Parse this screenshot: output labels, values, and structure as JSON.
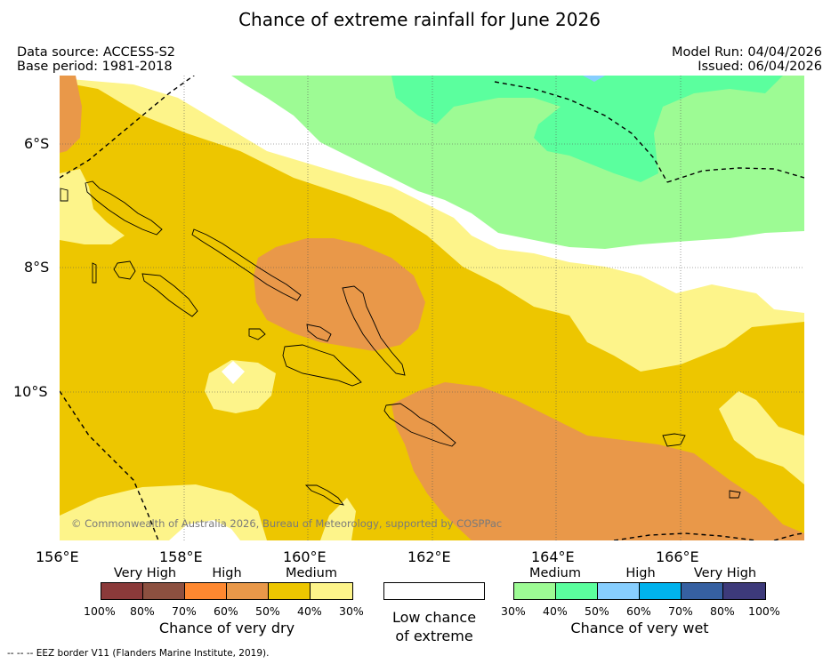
{
  "title": "Chance of extreme rainfall for June 2026",
  "meta": {
    "data_source": "Data source: ACCESS-S2",
    "base_period": "Base period: 1981-2018",
    "model_run": "Model Run: 04/04/2026",
    "issued": "Issued: 06/04/2026"
  },
  "map": {
    "lat_labels": [
      "6°S",
      "8°S",
      "10°S"
    ],
    "lon_labels": [
      "156°E",
      "158°E",
      "160°E",
      "162°E",
      "164°E",
      "166°E"
    ],
    "copyright": "© Commonwealth of Australia 2026, Bureau of Meteorology, supported by COSPPac"
  },
  "legend": {
    "dry": {
      "categories": [
        "Very High",
        "High",
        "Medium"
      ],
      "percentages": [
        "100%",
        "80%",
        "70%",
        "60%",
        "50%",
        "40%",
        "30%"
      ],
      "caption": "Chance of very dry",
      "colors": [
        "#8b3a3a",
        "#8c5040",
        "#fe8830",
        "#e99849",
        "#edc600",
        "#fdf48a"
      ]
    },
    "low": {
      "caption_line1": "Low chance",
      "caption_line2": "of extreme",
      "color": "#ffffff"
    },
    "wet": {
      "categories": [
        "Medium",
        "High",
        "Very High"
      ],
      "percentages": [
        "30%",
        "40%",
        "50%",
        "60%",
        "70%",
        "80%",
        "100%"
      ],
      "caption": "Chance of very wet",
      "colors": [
        "#9dfb94",
        "#5bff9e",
        "#87cefe",
        "#00b2ed",
        "#3660a1",
        "#3d3a7a"
      ]
    }
  },
  "footnote": "--  --  -- EEZ border V11 (Flanders Marine Institute, 2019)."
}
